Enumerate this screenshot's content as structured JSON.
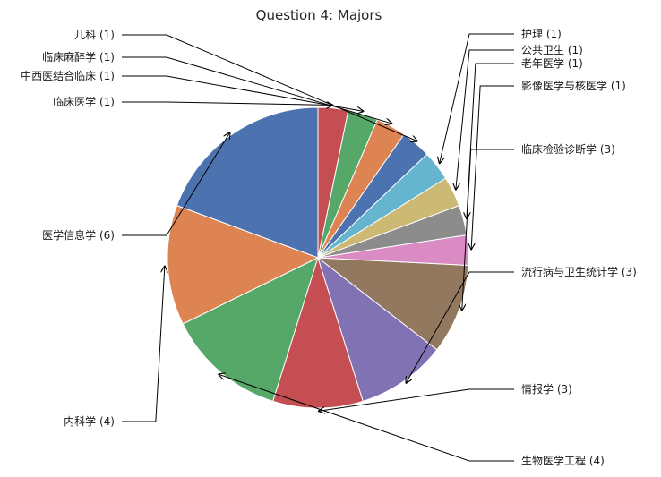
{
  "chart_data": {
    "type": "pie",
    "title": "Question 4: Majors",
    "slices": [
      {
        "label": "医学信息学 (6)",
        "value": 6,
        "color": "#4c72b0"
      },
      {
        "label": "内科学 (4)",
        "value": 4,
        "color": "#dd8452"
      },
      {
        "label": "生物医学工程 (4)",
        "value": 4,
        "color": "#55a868"
      },
      {
        "label": "情报学 (3)",
        "value": 3,
        "color": "#c44e52"
      },
      {
        "label": "流行病与卫生统计学 (3)",
        "value": 3,
        "color": "#8172b3"
      },
      {
        "label": "临床检验诊断学 (3)",
        "value": 3,
        "color": "#937860"
      },
      {
        "label": "影像医学与核医学 (1)",
        "value": 1,
        "color": "#da8bc3"
      },
      {
        "label": "老年医学 (1)",
        "value": 1,
        "color": "#8c8c8c"
      },
      {
        "label": "公共卫生 (1)",
        "value": 1,
        "color": "#ccb974"
      },
      {
        "label": "护理 (1)",
        "value": 1,
        "color": "#64b5cd"
      },
      {
        "label": "儿科 (1)",
        "value": 1,
        "color": "#4c72b0"
      },
      {
        "label": "临床麻醉学 (1)",
        "value": 1,
        "color": "#dd8452"
      },
      {
        "label": "中西医结合临床 (1)",
        "value": 1,
        "color": "#55a868"
      },
      {
        "label": "临床医学 (1)",
        "value": 1,
        "color": "#c44e52"
      }
    ]
  }
}
